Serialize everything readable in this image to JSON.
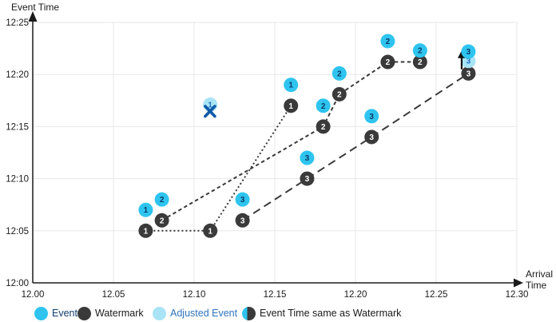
{
  "chart_data": {
    "type": "scatter",
    "title": "",
    "xlabel": "Arrival Time",
    "ylabel": "Event Time",
    "grid": true,
    "x_axis": {
      "min": 12.0,
      "max": 12.3,
      "title_lines": [
        "Arrival",
        "Time"
      ],
      "ticks": [
        {
          "v": 12.0,
          "label": "12.00"
        },
        {
          "v": 12.05,
          "label": "12.05"
        },
        {
          "v": 12.1,
          "label": "12.10"
        },
        {
          "v": 12.15,
          "label": "12.15"
        },
        {
          "v": 12.2,
          "label": "12.20"
        },
        {
          "v": 12.25,
          "label": "12.25"
        },
        {
          "v": 12.3,
          "label": "12.30"
        }
      ]
    },
    "y_axis": {
      "title": "Event Time",
      "ticks": [
        {
          "t": 0,
          "label": "12:00"
        },
        {
          "t": 5,
          "label": "12:05"
        },
        {
          "t": 10,
          "label": "12:10"
        },
        {
          "t": 15,
          "label": "12:15"
        },
        {
          "t": 20,
          "label": "12:20"
        },
        {
          "t": 25,
          "label": "12:25"
        }
      ]
    },
    "colors": {
      "event": "#2ec4ef",
      "watermark": "#3a3a3a",
      "adjusted": "#a8e4f6",
      "event_text": "#0c3a66",
      "watermark_text": "#ffffff",
      "adjusted_text": "#2273c3",
      "grid": "#e7e7e7",
      "axis": "#1a1a1a",
      "x_mark": "#0e5aa8"
    },
    "events": {
      "1": [
        {
          "a": 12.07,
          "t": 7
        },
        {
          "a": 12.16,
          "t": 19
        }
      ],
      "2": [
        {
          "a": 12.08,
          "t": 8
        },
        {
          "a": 12.18,
          "t": 17
        },
        {
          "a": 12.19,
          "t": 20.1
        },
        {
          "a": 12.22,
          "t": 23.2
        },
        {
          "a": 12.24,
          "t": 22.3
        }
      ],
      "3": [
        {
          "a": 12.13,
          "t": 8
        },
        {
          "a": 12.17,
          "t": 12
        },
        {
          "a": 12.21,
          "t": 16
        },
        {
          "a": 12.27,
          "t": 22.2
        }
      ]
    },
    "watermarks": {
      "1": {
        "dash": "2 3",
        "points": [
          {
            "a": 12.07,
            "t": 5
          },
          {
            "a": 12.11,
            "t": 5
          },
          {
            "a": 12.16,
            "t": 17
          }
        ]
      },
      "2": {
        "dash": "4.5 3.5",
        "points": [
          {
            "a": 12.08,
            "t": 6
          },
          {
            "a": 12.18,
            "t": 15
          },
          {
            "a": 12.19,
            "t": 18.1
          },
          {
            "a": 12.22,
            "t": 21.2
          },
          {
            "a": 12.24,
            "t": 21.2
          }
        ]
      },
      "3": {
        "dash": "10 6",
        "points": [
          {
            "a": 12.13,
            "t": 6
          },
          {
            "a": 12.17,
            "t": 10
          },
          {
            "a": 12.21,
            "t": 14
          },
          {
            "a": 12.27,
            "t": 20.1
          }
        ]
      }
    },
    "adjusted_events": [
      {
        "id": "1",
        "a": 12.11,
        "t": 17.1,
        "annotation": "x-mark"
      },
      {
        "id": "3",
        "a": 12.27,
        "t": 21.3,
        "annotation": "up-arrow"
      }
    ]
  },
  "legend": {
    "items": [
      {
        "label": "Event",
        "swatch": "event",
        "text_color": "#123e6f"
      },
      {
        "label": "Watermark",
        "swatch": "watermark",
        "text_color": "#1a1a1a"
      },
      {
        "label": "Adjusted Event",
        "swatch": "adjusted",
        "text_color": "#2e74c0"
      },
      {
        "label": "Event Time same as Watermark",
        "swatch": "split",
        "text_color": "#1a1a1a"
      }
    ]
  }
}
